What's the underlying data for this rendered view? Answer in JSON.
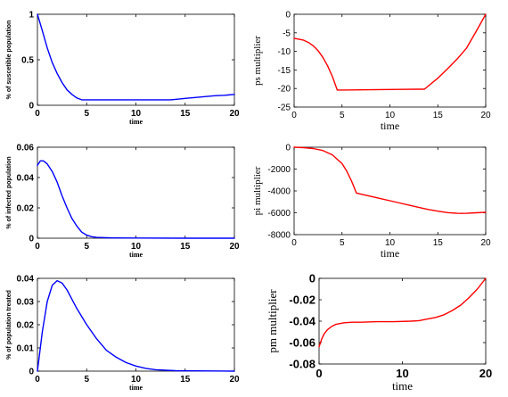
{
  "chart_data": [
    {
      "type": "line",
      "xlabel": "time",
      "ylabel": "% of suscetible population",
      "xlim": [
        0,
        20
      ],
      "ylim": [
        0,
        1
      ],
      "xticks": [
        "0",
        "5",
        "10",
        "15",
        "20"
      ],
      "yticks": [
        "0",
        "0.5",
        "1"
      ],
      "color": "#0000ff",
      "series": [
        {
          "x": [
            0,
            0.5,
            1,
            1.5,
            2,
            2.5,
            3,
            3.5,
            4,
            4.5,
            5,
            6,
            7,
            8,
            9,
            10,
            11,
            12,
            13,
            13.5,
            14,
            15,
            16,
            17,
            18,
            19,
            20
          ],
          "y": [
            1.0,
            0.82,
            0.63,
            0.47,
            0.35,
            0.25,
            0.17,
            0.12,
            0.08,
            0.06,
            0.06,
            0.06,
            0.06,
            0.06,
            0.06,
            0.06,
            0.06,
            0.06,
            0.06,
            0.06,
            0.065,
            0.075,
            0.085,
            0.095,
            0.105,
            0.11,
            0.12
          ]
        }
      ]
    },
    {
      "type": "line",
      "xlabel": "time",
      "ylabel": "ps multiplier",
      "xlim": [
        0,
        20
      ],
      "ylim": [
        -25,
        0
      ],
      "xticks": [
        "0",
        "5",
        "10",
        "15",
        "20"
      ],
      "yticks": [
        "-25",
        "-20",
        "-15",
        "-10",
        "-5",
        "0"
      ],
      "color": "#ff0000",
      "series": [
        {
          "x": [
            0,
            0.5,
            1,
            1.5,
            2,
            2.5,
            3,
            3.5,
            4,
            4.5,
            5,
            7,
            9,
            11,
            13,
            13.6,
            15,
            16,
            17,
            18,
            19,
            20
          ],
          "y": [
            -6.5,
            -6.7,
            -7.0,
            -7.6,
            -8.5,
            -9.8,
            -11.6,
            -13.9,
            -16.8,
            -20.4,
            -20.4,
            -20.35,
            -20.3,
            -20.25,
            -20.2,
            -20.2,
            -17.2,
            -14.7,
            -12.1,
            -9.1,
            -4.6,
            0
          ]
        }
      ]
    },
    {
      "type": "line",
      "xlabel": "time",
      "ylabel": "% of infected population",
      "xlim": [
        0,
        20
      ],
      "ylim": [
        0,
        0.06
      ],
      "xticks": [
        "0",
        "5",
        "10",
        "15",
        "20"
      ],
      "yticks": [
        "0",
        "0.02",
        "0.04",
        "0.06"
      ],
      "color": "#0000ff",
      "series": [
        {
          "x": [
            0,
            0.3,
            0.6,
            1,
            1.5,
            2,
            2.5,
            3,
            3.5,
            4,
            4.5,
            5,
            5.5,
            6,
            7,
            8,
            10,
            15,
            20
          ],
          "y": [
            0.048,
            0.051,
            0.051,
            0.049,
            0.044,
            0.037,
            0.028,
            0.02,
            0.013,
            0.008,
            0.004,
            0.002,
            0.001,
            0.0005,
            0.0003,
            0.0002,
            0.0001,
            0.0,
            0.0
          ]
        }
      ]
    },
    {
      "type": "line",
      "xlabel": "time",
      "ylabel": "pi multiplier",
      "xlim": [
        0,
        20
      ],
      "ylim": [
        -8000,
        0
      ],
      "xticks": [
        "0",
        "5",
        "10",
        "15",
        "20"
      ],
      "yticks": [
        "-8000",
        "-6000",
        "-4000",
        "-2000",
        "0"
      ],
      "color": "#ff0000",
      "series": [
        {
          "x": [
            0,
            1,
            2,
            3,
            4,
            5,
            5.5,
            6,
            6.5,
            7,
            8,
            9,
            10,
            11,
            12,
            13,
            14,
            15,
            16,
            17,
            17.5,
            18,
            19,
            20
          ],
          "y": [
            0,
            -50,
            -120,
            -300,
            -700,
            -1500,
            -2200,
            -3100,
            -4200,
            -4300,
            -4500,
            -4700,
            -4900,
            -5100,
            -5300,
            -5500,
            -5700,
            -5850,
            -5980,
            -6050,
            -6060,
            -6050,
            -6000,
            -5950
          ]
        }
      ]
    },
    {
      "type": "line",
      "xlabel": "time",
      "ylabel": "% of population treated",
      "xlim": [
        0,
        20
      ],
      "ylim": [
        0,
        0.04
      ],
      "xticks": [
        "0",
        "5",
        "10",
        "15",
        "20"
      ],
      "yticks": [
        "0",
        "0.01",
        "0.02",
        "0.03",
        "0.04"
      ],
      "color": "#0000ff",
      "series": [
        {
          "x": [
            0,
            0.5,
            1,
            1.5,
            2,
            2.5,
            3,
            3.5,
            4,
            5,
            6,
            7,
            8,
            9,
            10,
            11,
            12,
            14,
            16,
            20
          ],
          "y": [
            0.0,
            0.017,
            0.03,
            0.037,
            0.039,
            0.038,
            0.035,
            0.031,
            0.027,
            0.02,
            0.014,
            0.009,
            0.006,
            0.0037,
            0.0022,
            0.0012,
            0.0006,
            0.0002,
            0.0001,
            0.0
          ]
        }
      ]
    },
    {
      "type": "line",
      "xlabel": "time",
      "ylabel": "pm multiplier",
      "xlim": [
        0,
        20
      ],
      "ylim": [
        -0.08,
        0
      ],
      "xticks": [
        "0",
        "10",
        "20"
      ],
      "yticks": [
        "-0.08",
        "-0.06",
        "-0.04",
        "-0.02",
        "0"
      ],
      "color": "#ff0000",
      "series": [
        {
          "x": [
            0,
            0.3,
            0.6,
            1,
            1.5,
            2,
            3,
            4,
            5,
            7,
            9,
            11,
            12,
            13,
            14,
            15,
            16,
            17,
            18,
            19,
            20
          ],
          "y": [
            -0.064,
            -0.057,
            -0.052,
            -0.048,
            -0.045,
            -0.043,
            -0.0415,
            -0.041,
            -0.041,
            -0.0405,
            -0.0405,
            -0.04,
            -0.0395,
            -0.038,
            -0.0365,
            -0.034,
            -0.03,
            -0.025,
            -0.018,
            -0.01,
            0.0
          ]
        }
      ]
    }
  ]
}
